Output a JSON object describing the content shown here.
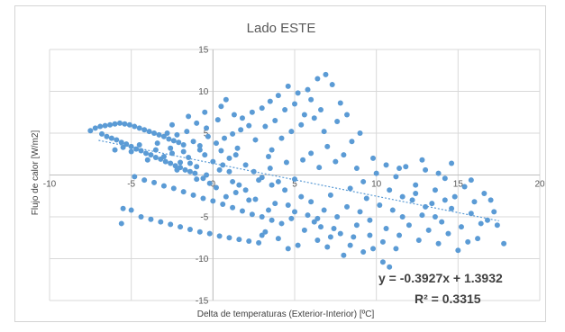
{
  "chart_data": {
    "type": "scatter",
    "title": "Lado ESTE",
    "xlabel": "Delta de temperaturas (Exterior-Interior) [ºC]",
    "ylabel": "Flujo de calor [W/m2]",
    "xlim": [
      -10,
      20
    ],
    "ylim": [
      -15,
      15
    ],
    "xticks": [
      -10,
      -5,
      0,
      5,
      10,
      15,
      20
    ],
    "yticks": [
      -15,
      -10,
      -5,
      0,
      5,
      10,
      15
    ],
    "xtick_labels": [
      "-10",
      "-5",
      "0",
      "5",
      "10",
      "15",
      "20"
    ],
    "ytick_labels": [
      "-15",
      "-10",
      "-5",
      "",
      "5",
      "10",
      "15"
    ],
    "grid": true,
    "legend": "none",
    "colors": {
      "points": "#5b9bd5",
      "grid": "#d9d9d9",
      "axis": "#bfbfbf",
      "trendline": "#5b9bd5"
    },
    "trendline": {
      "type": "linear",
      "slope": -0.3927,
      "intercept": 1.3932,
      "x_range": [
        -7,
        17.5
      ],
      "equation_label": "y = -0.3927x + 1.3932",
      "r2_label": "R² = 0.3315"
    },
    "series": [
      {
        "points": [
          [
            -7.5,
            5.3
          ],
          [
            -7.2,
            5.6
          ],
          [
            -6.9,
            5.8
          ],
          [
            -6.6,
            5.9
          ],
          [
            -6.3,
            6.0
          ],
          [
            -6.0,
            6.1
          ],
          [
            -5.7,
            6.2
          ],
          [
            -5.4,
            6.1
          ],
          [
            -5.1,
            6.0
          ],
          [
            -4.8,
            5.8
          ],
          [
            -4.5,
            5.6
          ],
          [
            -4.2,
            5.4
          ],
          [
            -3.9,
            5.2
          ],
          [
            -3.6,
            5.0
          ],
          [
            -3.3,
            4.8
          ],
          [
            -3.0,
            4.6
          ],
          [
            -2.7,
            4.3
          ],
          [
            -2.4,
            4.1
          ],
          [
            -2.1,
            3.9
          ],
          [
            -1.8,
            3.6
          ],
          [
            -6.8,
            4.9
          ],
          [
            -6.5,
            4.6
          ],
          [
            -6.2,
            4.4
          ],
          [
            -5.9,
            4.2
          ],
          [
            -5.6,
            3.9
          ],
          [
            -5.3,
            3.7
          ],
          [
            -5.0,
            3.4
          ],
          [
            -4.7,
            3.1
          ],
          [
            -4.4,
            2.9
          ],
          [
            -4.1,
            2.6
          ],
          [
            -3.8,
            2.4
          ],
          [
            -3.5,
            2.1
          ],
          [
            -3.2,
            1.9
          ],
          [
            -2.9,
            1.6
          ],
          [
            -2.6,
            1.4
          ],
          [
            -2.3,
            1.1
          ],
          [
            -2.0,
            0.9
          ],
          [
            -1.7,
            0.6
          ],
          [
            -1.4,
            0.4
          ],
          [
            -1.1,
            0.2
          ],
          [
            -6.0,
            3.0
          ],
          [
            -5.5,
            3.3
          ],
          [
            -5.0,
            2.8
          ],
          [
            -4.5,
            3.6
          ],
          [
            -4.0,
            1.8
          ],
          [
            -3.5,
            3.0
          ],
          [
            -3.0,
            2.2
          ],
          [
            -2.5,
            2.6
          ],
          [
            -2.0,
            1.5
          ],
          [
            -1.5,
            2.1
          ],
          [
            -1.0,
            1.0
          ],
          [
            -0.5,
            2.4
          ],
          [
            0.0,
            1.6
          ],
          [
            0.5,
            2.9
          ],
          [
            1.0,
            2.0
          ],
          [
            1.5,
            3.2
          ],
          [
            -1.2,
            4.0
          ],
          [
            -0.8,
            3.5
          ],
          [
            -0.3,
            4.6
          ],
          [
            0.2,
            3.8
          ],
          [
            0.7,
            4.4
          ],
          [
            1.2,
            4.9
          ],
          [
            1.7,
            5.4
          ],
          [
            2.2,
            5.9
          ],
          [
            -2.8,
            5.0
          ],
          [
            -2.2,
            4.8
          ],
          [
            -1.6,
            5.2
          ],
          [
            -1.0,
            6.2
          ],
          [
            -0.4,
            5.6
          ],
          [
            0.3,
            6.6
          ],
          [
            -2.5,
            6.0
          ],
          [
            -1.5,
            7.0
          ],
          [
            -0.5,
            7.5
          ],
          [
            0.5,
            8.2
          ],
          [
            0.8,
            9.0
          ],
          [
            1.3,
            7.2
          ],
          [
            1.8,
            6.8
          ],
          [
            2.4,
            7.5
          ],
          [
            3.0,
            8.0
          ],
          [
            3.5,
            8.8
          ],
          [
            4.0,
            9.5
          ],
          [
            4.6,
            10.6
          ],
          [
            5.2,
            9.8
          ],
          [
            5.8,
            10.2
          ],
          [
            6.4,
            11.5
          ],
          [
            6.9,
            12.0
          ],
          [
            7.3,
            10.8
          ],
          [
            6.0,
            9.0
          ],
          [
            5.0,
            8.5
          ],
          [
            4.4,
            7.8
          ],
          [
            3.8,
            6.5
          ],
          [
            3.2,
            5.8
          ],
          [
            2.6,
            4.2
          ],
          [
            2.0,
            1.2
          ],
          [
            2.5,
            0.4
          ],
          [
            3.0,
            -0.3
          ],
          [
            3.5,
            0.8
          ],
          [
            4.0,
            -0.8
          ],
          [
            4.5,
            1.5
          ],
          [
            5.0,
            -0.5
          ],
          [
            5.5,
            1.8
          ],
          [
            6.0,
            2.6
          ],
          [
            6.5,
            0.9
          ],
          [
            7.0,
            3.4
          ],
          [
            7.5,
            1.6
          ],
          [
            8.0,
            2.4
          ],
          [
            8.5,
            4.0
          ],
          [
            9.0,
            5.0
          ],
          [
            6.8,
            5.2
          ],
          [
            7.6,
            6.4
          ],
          [
            8.2,
            7.2
          ],
          [
            6.2,
            6.8
          ],
          [
            5.4,
            6.0
          ],
          [
            4.8,
            5.2
          ],
          [
            4.2,
            4.4
          ],
          [
            3.6,
            3.0
          ],
          [
            7.8,
            8.6
          ],
          [
            6.6,
            7.8
          ],
          [
            5.6,
            7.2
          ],
          [
            3.4,
            2.2
          ],
          [
            -4.8,
            -0.2
          ],
          [
            -4.2,
            -0.6
          ],
          [
            -3.6,
            -0.9
          ],
          [
            -3.0,
            -1.3
          ],
          [
            -2.4,
            -1.6
          ],
          [
            -1.8,
            -2.0
          ],
          [
            -1.2,
            -2.4
          ],
          [
            -0.6,
            -2.8
          ],
          [
            0.0,
            -3.1
          ],
          [
            0.6,
            -3.5
          ],
          [
            1.2,
            -3.9
          ],
          [
            1.8,
            -4.3
          ],
          [
            2.4,
            -4.7
          ],
          [
            3.0,
            -5.0
          ],
          [
            3.6,
            -5.4
          ],
          [
            4.2,
            -5.8
          ],
          [
            -5.0,
            -4.2
          ],
          [
            -4.4,
            -5.0
          ],
          [
            -3.8,
            -5.3
          ],
          [
            -3.2,
            -5.6
          ],
          [
            -2.6,
            -5.9
          ],
          [
            -2.0,
            -6.2
          ],
          [
            -1.4,
            -6.5
          ],
          [
            -0.8,
            -6.8
          ],
          [
            -0.2,
            -7.0
          ],
          [
            0.4,
            -7.3
          ],
          [
            1.0,
            -7.5
          ],
          [
            1.6,
            -7.7
          ],
          [
            2.2,
            -7.9
          ],
          [
            2.8,
            -8.1
          ],
          [
            -5.5,
            -4.0
          ],
          [
            -5.6,
            -5.8
          ],
          [
            -1.0,
            -0.5
          ],
          [
            0.2,
            -1.5
          ],
          [
            1.4,
            -2.1
          ],
          [
            2.6,
            -2.9
          ],
          [
            3.8,
            -3.4
          ],
          [
            5.0,
            -4.4
          ],
          [
            6.2,
            -5.6
          ],
          [
            7.4,
            -6.4
          ],
          [
            8.6,
            -7.4
          ],
          [
            9.8,
            -8.8
          ],
          [
            10.4,
            -10.4
          ],
          [
            10.8,
            -11.0
          ],
          [
            8.0,
            -9.6
          ],
          [
            7.0,
            -8.6
          ],
          [
            6.4,
            -7.8
          ],
          [
            5.6,
            -6.6
          ],
          [
            4.8,
            -5.2
          ],
          [
            5.2,
            -8.4
          ],
          [
            4.0,
            -7.6
          ],
          [
            3.2,
            -6.8
          ],
          [
            6.0,
            -3.2
          ],
          [
            7.2,
            -2.4
          ],
          [
            8.4,
            -1.6
          ],
          [
            9.2,
            -0.8
          ],
          [
            10.0,
            0.2
          ],
          [
            10.6,
            1.2
          ],
          [
            11.2,
            -0.2
          ],
          [
            11.8,
            1.0
          ],
          [
            12.4,
            -1.2
          ],
          [
            13.0,
            0.6
          ],
          [
            13.6,
            -1.8
          ],
          [
            14.2,
            -0.4
          ],
          [
            14.8,
            -2.6
          ],
          [
            15.4,
            -1.4
          ],
          [
            16.0,
            -3.2
          ],
          [
            16.6,
            -2.2
          ],
          [
            17.2,
            -4.4
          ],
          [
            17.8,
            -8.2
          ],
          [
            9.4,
            -2.8
          ],
          [
            10.2,
            -3.6
          ],
          [
            11.0,
            -4.2
          ],
          [
            11.6,
            -5.0
          ],
          [
            12.2,
            -3.0
          ],
          [
            12.8,
            -4.8
          ],
          [
            13.4,
            -3.4
          ],
          [
            14.0,
            -5.6
          ],
          [
            14.6,
            -4.0
          ],
          [
            15.2,
            -6.2
          ],
          [
            15.8,
            -4.6
          ],
          [
            16.4,
            -5.8
          ],
          [
            9.6,
            -5.4
          ],
          [
            10.6,
            -6.4
          ],
          [
            11.4,
            -7.2
          ],
          [
            12.0,
            -6.0
          ],
          [
            12.6,
            -7.8
          ],
          [
            13.2,
            -6.6
          ],
          [
            13.8,
            -8.2
          ],
          [
            14.4,
            -7.0
          ],
          [
            15.0,
            -9.0
          ],
          [
            12.4,
            -2.2
          ],
          [
            13.0,
            -3.8
          ],
          [
            13.6,
            -5.0
          ],
          [
            14.2,
            -3.0
          ],
          [
            10.8,
            -1.8
          ],
          [
            11.6,
            -2.6
          ],
          [
            16.2,
            -7.6
          ],
          [
            15.6,
            -8.0
          ],
          [
            11.2,
            -8.8
          ],
          [
            9.0,
            -4.4
          ],
          [
            8.2,
            -3.8
          ],
          [
            7.6,
            -5.0
          ],
          [
            6.8,
            -4.2
          ],
          [
            8.8,
            -6.0
          ],
          [
            9.6,
            -7.2
          ],
          [
            10.4,
            -8.0
          ],
          [
            7.8,
            -7.0
          ],
          [
            6.6,
            -6.2
          ],
          [
            5.4,
            -2.6
          ],
          [
            4.4,
            -1.8
          ],
          [
            3.6,
            -1.2
          ],
          [
            2.8,
            -0.6
          ],
          [
            2.0,
            -1.8
          ],
          [
            1.2,
            -0.8
          ],
          [
            0.4,
            0.6
          ],
          [
            -0.4,
            0.0
          ],
          [
            -0.2,
            -1.0
          ],
          [
            0.8,
            -2.6
          ],
          [
            1.6,
            -1.2
          ],
          [
            2.2,
            -3.0
          ],
          [
            3.4,
            -4.2
          ],
          [
            4.6,
            -3.6
          ],
          [
            5.8,
            -4.8
          ],
          [
            6.4,
            -5.2
          ],
          [
            7.2,
            -7.4
          ],
          [
            8.4,
            -8.4
          ],
          [
            9.2,
            -9.2
          ],
          [
            3.0,
            -7.2
          ],
          [
            4.6,
            -8.8
          ],
          [
            15.8,
            -0.6
          ],
          [
            17.0,
            -3.0
          ],
          [
            16.8,
            -5.4
          ],
          [
            17.4,
            -6.0
          ],
          [
            14.6,
            1.4
          ],
          [
            12.8,
            1.8
          ],
          [
            11.4,
            0.8
          ],
          [
            13.8,
            0.2
          ],
          [
            8.8,
            0.8
          ],
          [
            9.8,
            2.0
          ],
          [
            -3.4,
            3.8
          ],
          [
            -2.6,
            3.2
          ],
          [
            -1.8,
            2.8
          ],
          [
            -0.8,
            3.0
          ],
          [
            0.6,
            1.2
          ],
          [
            1.0,
            0.4
          ],
          [
            -1.4,
            1.4
          ],
          [
            -2.2,
            0.6
          ],
          [
            -0.6,
            -0.4
          ],
          [
            1.4,
            2.4
          ]
        ]
      }
    ]
  }
}
